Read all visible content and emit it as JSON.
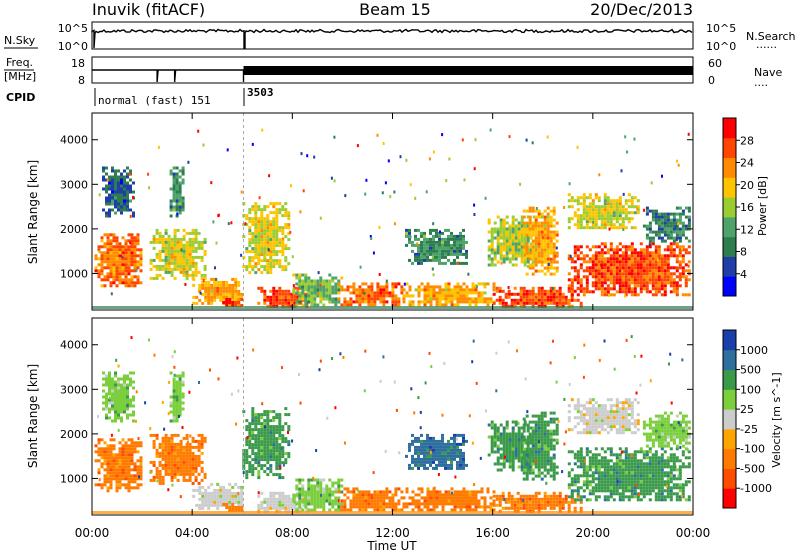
{
  "header": {
    "station": "Inuvik (fitACF)",
    "beam": "Beam 15",
    "date": "20/Dec/2013"
  },
  "nsky_panel": {
    "left_label": "N.Sky",
    "right_label": "N.Search",
    "left_ticks": [
      "10^5",
      "10^0"
    ],
    "right_ticks": [
      "10^5",
      "10^0"
    ],
    "right_dots": "......"
  },
  "freq_panel": {
    "left_label_top": "Freq.",
    "left_label_bottom": "[MHz]",
    "right_label": "Nave",
    "left_ticks": [
      "18",
      "8"
    ],
    "right_ticks": [
      "60",
      "0"
    ],
    "right_dots": "...."
  },
  "cpid": {
    "label": "CPID",
    "modes": [
      {
        "name": "normal (fast) 151",
        "start_hour": 0
      },
      {
        "name": "3503",
        "start_hour": 6.05
      }
    ]
  },
  "colors": {
    "power_scale": [
      "#0000ff",
      "#1f3ea8",
      "#2e7d4f",
      "#4ea36a",
      "#9acd32",
      "#ffc400",
      "#ff8c00",
      "#ff4500",
      "#ff0000"
    ],
    "velocity_scale": [
      "#ff0000",
      "#ff4d00",
      "#ff7a00",
      "#ffa500",
      "#cccccc",
      "#7ccf3c",
      "#3a9a4a",
      "#2e6f9e",
      "#1a3fa8"
    ]
  },
  "chart_data": [
    {
      "type": "heatmap",
      "title": "",
      "ylabel": "Slant Range [km]",
      "y_ticks": [
        "1000",
        "2000",
        "3000",
        "4000"
      ],
      "y_tick_values": [
        1000,
        2000,
        3000,
        4000
      ],
      "ylim": [
        180,
        4600
      ],
      "xlim": [
        0,
        24
      ],
      "colorbar": {
        "label": "Power [dB]",
        "ticks": [
          "4",
          "8",
          "12",
          "16",
          "20",
          "24",
          "28"
        ],
        "range": [
          0,
          32
        ]
      },
      "regions": [
        {
          "t": [
            0.1,
            2.0
          ],
          "r": [
            700,
            1900
          ],
          "value": 26
        },
        {
          "t": [
            0.4,
            1.6
          ],
          "r": [
            2300,
            3400
          ],
          "value": 6
        },
        {
          "t": [
            2.3,
            4.5
          ],
          "r": [
            900,
            2000
          ],
          "value": 18
        },
        {
          "t": [
            3.1,
            3.6
          ],
          "r": [
            2300,
            3400
          ],
          "value": 10
        },
        {
          "t": [
            4.0,
            6.0
          ],
          "r": [
            300,
            900
          ],
          "value": 22
        },
        {
          "t": [
            5.2,
            6.0
          ],
          "r": [
            250,
            450
          ],
          "value": 28
        },
        {
          "t": [
            6.0,
            7.8
          ],
          "r": [
            1000,
            2600
          ],
          "value": 18
        },
        {
          "t": [
            6.6,
            8.6
          ],
          "r": [
            250,
            700
          ],
          "value": 28
        },
        {
          "t": [
            8.0,
            10.0
          ],
          "r": [
            300,
            1000
          ],
          "value": 14
        },
        {
          "t": [
            9.8,
            12.4
          ],
          "r": [
            300,
            800
          ],
          "value": 26
        },
        {
          "t": [
            12.4,
            16.0
          ],
          "r": [
            300,
            800
          ],
          "value": 22
        },
        {
          "t": [
            12.5,
            15.0
          ],
          "r": [
            1200,
            2000
          ],
          "value": 10
        },
        {
          "t": [
            15.8,
            17.6
          ],
          "r": [
            1200,
            2300
          ],
          "value": 16
        },
        {
          "t": [
            16.0,
            19.5
          ],
          "r": [
            250,
            700
          ],
          "value": 28
        },
        {
          "t": [
            17.2,
            18.6
          ],
          "r": [
            1000,
            2500
          ],
          "value": 22
        },
        {
          "t": [
            19.0,
            23.9
          ],
          "r": [
            500,
            1700
          ],
          "value": 28
        },
        {
          "t": [
            19.0,
            21.8
          ],
          "r": [
            2000,
            2800
          ],
          "value": 18
        },
        {
          "t": [
            22.0,
            23.9
          ],
          "r": [
            1700,
            2500
          ],
          "value": 8
        }
      ]
    },
    {
      "type": "heatmap",
      "title": "",
      "ylabel": "Slant Range [km]",
      "xlabel": "Time UT",
      "y_ticks": [
        "1000",
        "2000",
        "3000",
        "4000"
      ],
      "y_tick_values": [
        1000,
        2000,
        3000,
        4000
      ],
      "x_ticks": [
        "00:00",
        "04:00",
        "08:00",
        "12:00",
        "16:00",
        "20:00",
        "00:00"
      ],
      "x_tick_values": [
        0,
        4,
        8,
        12,
        16,
        20,
        24
      ],
      "ylim": [
        180,
        4600
      ],
      "xlim": [
        0,
        24
      ],
      "colorbar": {
        "label": "Velocity [m s^-1]",
        "ticks": [
          "-1000",
          "-500",
          "-100",
          "-25",
          "25",
          "100",
          "500",
          "1000"
        ],
        "bins": [
          -1500,
          -1000,
          -500,
          -100,
          -25,
          25,
          100,
          500,
          1000,
          1500
        ]
      },
      "regions": [
        {
          "t": [
            0.1,
            2.0
          ],
          "r": [
            700,
            1900
          ],
          "value": -300
        },
        {
          "t": [
            0.4,
            1.6
          ],
          "r": [
            2300,
            3400
          ],
          "value": 60
        },
        {
          "t": [
            2.3,
            4.5
          ],
          "r": [
            900,
            2000
          ],
          "value": -300
        },
        {
          "t": [
            3.1,
            3.6
          ],
          "r": [
            2300,
            3400
          ],
          "value": 60
        },
        {
          "t": [
            4.0,
            6.0
          ],
          "r": [
            300,
            900
          ],
          "value": 0
        },
        {
          "t": [
            5.2,
            6.0
          ],
          "r": [
            250,
            450
          ],
          "value": -150
        },
        {
          "t": [
            6.0,
            7.8
          ],
          "r": [
            1000,
            2600
          ],
          "value": 200
        },
        {
          "t": [
            6.6,
            8.6
          ],
          "r": [
            250,
            700
          ],
          "value": 0
        },
        {
          "t": [
            8.0,
            10.0
          ],
          "r": [
            300,
            1000
          ],
          "value": 60
        },
        {
          "t": [
            9.8,
            12.4
          ],
          "r": [
            300,
            800
          ],
          "value": -200
        },
        {
          "t": [
            12.4,
            16.0
          ],
          "r": [
            300,
            800
          ],
          "value": -200
        },
        {
          "t": [
            12.5,
            15.0
          ],
          "r": [
            1200,
            2000
          ],
          "value": 700
        },
        {
          "t": [
            15.8,
            17.6
          ],
          "r": [
            1200,
            2300
          ],
          "value": 200
        },
        {
          "t": [
            16.0,
            19.5
          ],
          "r": [
            250,
            700
          ],
          "value": -300
        },
        {
          "t": [
            17.2,
            18.6
          ],
          "r": [
            1000,
            2500
          ],
          "value": 200
        },
        {
          "t": [
            19.0,
            23.9
          ],
          "r": [
            500,
            1700
          ],
          "value": 200
        },
        {
          "t": [
            19.0,
            21.8
          ],
          "r": [
            2000,
            2800
          ],
          "value": 0
        },
        {
          "t": [
            22.0,
            23.9
          ],
          "r": [
            1700,
            2500
          ],
          "value": 60
        }
      ]
    }
  ]
}
